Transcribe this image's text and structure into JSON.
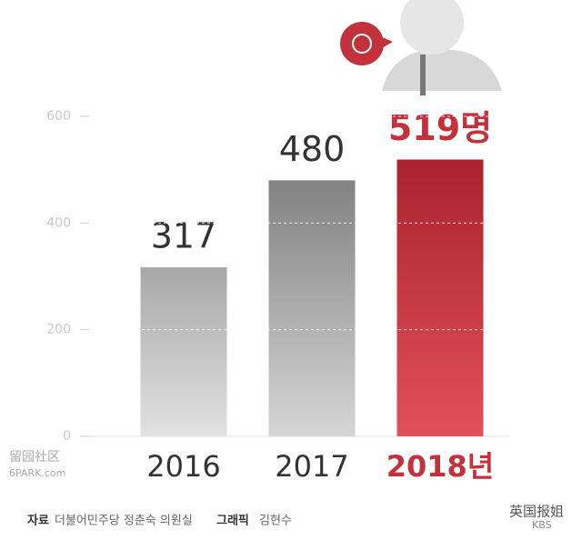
{
  "chart_data": {
    "type": "bar",
    "categories": [
      "2016",
      "2017",
      "2018년"
    ],
    "values": [
      317,
      480,
      519
    ],
    "value_labels": [
      "317",
      "480",
      "519명"
    ],
    "colors": [
      "#a9a9a9",
      "#8a8a8a",
      "#c3313c"
    ],
    "ylim": [
      0,
      600
    ],
    "yticks": [
      0,
      200,
      400,
      600
    ],
    "grid": true
  },
  "footer": {
    "source_label": "자료",
    "source": "더불어민주당 정춘숙 의원실",
    "graphic_label": "그래픽",
    "graphic": "김현수"
  },
  "watermarks": [
    "留园社区",
    "6PARK.com",
    "英国报姐",
    "KBS"
  ]
}
